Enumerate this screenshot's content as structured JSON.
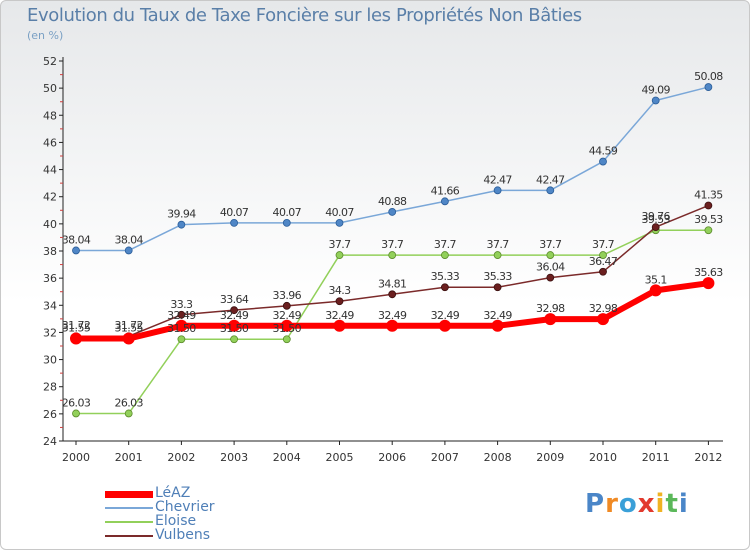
{
  "title": "Evolution du Taux de Taxe Foncière sur les Propriétés Non Bâties",
  "unit_label": "(en %)",
  "logo": {
    "letters": [
      "P",
      "r",
      "o",
      "x",
      "i",
      "t",
      "i"
    ],
    "colors": [
      "#4a86c8",
      "#f08a24",
      "#3aa0d8",
      "#e23a2e",
      "#f0b323",
      "#5bb85a",
      "#4a86c8"
    ]
  },
  "chart_data": {
    "type": "line",
    "title": "Evolution du Taux de Taxe Foncière sur les Propriétés Non Bâties",
    "ylabel": "(en %)",
    "xlabel": "",
    "x": [
      "2000",
      "2001",
      "2002",
      "2003",
      "2004",
      "2005",
      "2006",
      "2007",
      "2008",
      "2009",
      "2010",
      "2011",
      "2012"
    ],
    "ylim": [
      24,
      52
    ],
    "yticks": [
      24,
      26,
      28,
      30,
      32,
      34,
      36,
      38,
      40,
      42,
      44,
      46,
      48,
      50,
      52
    ],
    "grid": false,
    "legend_position": "bottom-left",
    "series": [
      {
        "name": "LéAZ",
        "color": "#ff0000",
        "values": [
          31.55,
          31.55,
          32.49,
          32.49,
          32.49,
          32.49,
          32.49,
          32.49,
          32.49,
          32.98,
          32.98,
          35.1,
          35.63
        ],
        "labels": [
          "31.55",
          "31.55",
          "32.49",
          "32.49",
          "32.49",
          "32.49",
          "32.49",
          "32.49",
          "32.49",
          "32.98",
          "32.98",
          "35.1",
          "35.63"
        ]
      },
      {
        "name": "Chevrier",
        "color": "#7aa7d8",
        "values": [
          38.04,
          38.04,
          39.94,
          40.07,
          40.07,
          40.07,
          40.88,
          41.66,
          42.47,
          42.47,
          44.59,
          49.09,
          50.08
        ],
        "labels": [
          "38.04",
          "38.04",
          "39.94",
          "40.07",
          "40.07",
          "40.07",
          "40.88",
          "41.66",
          "42.47",
          "42.47",
          "44.59",
          "49.09",
          "50.08"
        ]
      },
      {
        "name": "Eloise",
        "color": "#92d05a",
        "values": [
          26.03,
          26.03,
          31.5,
          31.5,
          31.5,
          37.7,
          37.7,
          37.7,
          37.7,
          37.7,
          37.7,
          39.53,
          39.53
        ],
        "labels": [
          "26.03",
          "26.03",
          "31.50",
          "31.50",
          "31.50",
          "37.7",
          "37.7",
          "37.7",
          "37.7",
          "37.7",
          "37.7",
          "39.53",
          "39.53"
        ]
      },
      {
        "name": "Vulbens",
        "color": "#7b2a2a",
        "values": [
          31.72,
          31.72,
          33.3,
          33.64,
          33.96,
          34.3,
          34.81,
          35.33,
          35.33,
          36.04,
          36.47,
          39.76,
          41.35
        ],
        "labels": [
          "31.72",
          "31.72",
          "33.3",
          "33.64",
          "33.96",
          "34.3",
          "34.81",
          "35.33",
          "35.33",
          "36.04",
          "36.47",
          "39.76",
          "41.35"
        ]
      }
    ]
  }
}
